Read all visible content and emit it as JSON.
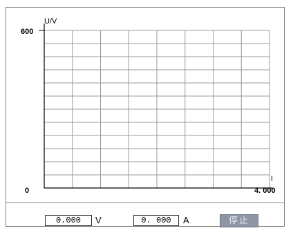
{
  "chart_data": {
    "type": "line",
    "xlabel": "I",
    "ylabel": "U/V",
    "xlim": [
      0,
      4.0
    ],
    "ylim": [
      0,
      600
    ],
    "x_tick_labels": {
      "min": "0",
      "max": "4. 000"
    },
    "y_tick_labels": {
      "max": "600"
    },
    "grid": true,
    "grid_columns": 8,
    "grid_rows": 12,
    "series": []
  },
  "readouts": {
    "voltage_value": "0.000",
    "voltage_unit": "V",
    "current_value": "0. 000",
    "current_unit": "A"
  },
  "controls": {
    "stop_label": "停止"
  }
}
